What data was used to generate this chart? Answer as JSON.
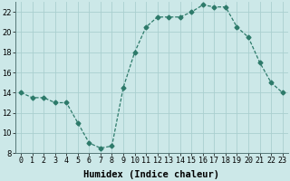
{
  "x": [
    0,
    1,
    2,
    3,
    4,
    5,
    6,
    7,
    8,
    9,
    10,
    11,
    12,
    13,
    14,
    15,
    16,
    17,
    18,
    19,
    20,
    21,
    22,
    23
  ],
  "y": [
    14,
    13.5,
    13.5,
    13,
    13,
    11,
    9,
    8.5,
    8.7,
    14.5,
    18,
    20.5,
    21.5,
    21.5,
    21.5,
    22,
    22.7,
    22.5,
    22.5,
    20.5,
    19.5,
    17,
    15,
    14
  ],
  "xlabel": "Humidex (Indice chaleur)",
  "ylim": [
    8,
    23
  ],
  "xlim": [
    -0.5,
    23.5
  ],
  "yticks": [
    8,
    10,
    12,
    14,
    16,
    18,
    20,
    22
  ],
  "xticks": [
    0,
    1,
    2,
    3,
    4,
    5,
    6,
    7,
    8,
    9,
    10,
    11,
    12,
    13,
    14,
    15,
    16,
    17,
    18,
    19,
    20,
    21,
    22,
    23
  ],
  "line_color": "#2d7a6a",
  "marker": "D",
  "marker_size": 2.5,
  "bg_color": "#cce8e8",
  "grid_color": "#aacfcf",
  "label_fontsize": 7.5,
  "tick_fontsize": 6.0
}
